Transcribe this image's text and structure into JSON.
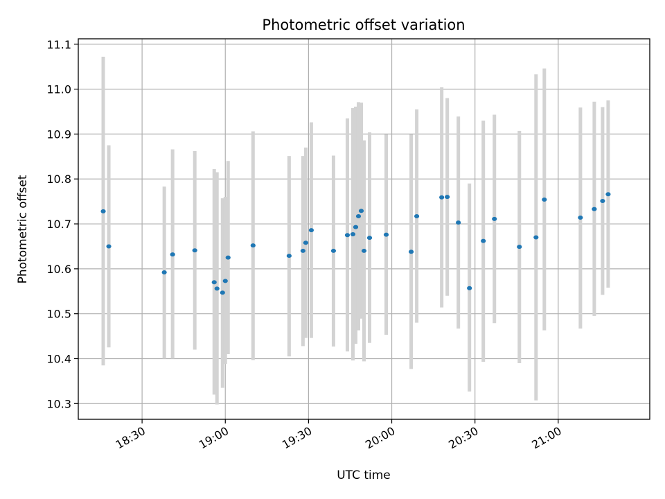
{
  "chart_data": {
    "type": "scatter",
    "title": "Photometric offset variation",
    "xlabel": "UTC time",
    "ylabel": "Photometric offset",
    "x_axis": {
      "type": "time",
      "range": [
        "18:07",
        "21:33"
      ],
      "ticks": [
        "18:30",
        "19:00",
        "19:30",
        "20:00",
        "20:30",
        "21:00"
      ]
    },
    "y_axis": {
      "range": [
        10.265,
        11.112
      ],
      "ticks": [
        "10.3",
        "10.4",
        "10.5",
        "10.6",
        "10.7",
        "10.8",
        "10.9",
        "11.0",
        "11.1"
      ]
    },
    "grid": true,
    "point_color": "#1f77b4",
    "errorbar_color": "#d3d3d3",
    "points": [
      {
        "time": "18:16",
        "y": 10.728,
        "low": 10.385,
        "high": 11.072
      },
      {
        "time": "18:18",
        "y": 10.65,
        "low": 10.425,
        "high": 10.875
      },
      {
        "time": "18:38",
        "y": 10.592,
        "low": 10.4,
        "high": 10.783
      },
      {
        "time": "18:41",
        "y": 10.632,
        "low": 10.4,
        "high": 10.866
      },
      {
        "time": "18:49",
        "y": 10.641,
        "low": 10.42,
        "high": 10.862
      },
      {
        "time": "18:56",
        "y": 10.57,
        "low": 10.32,
        "high": 10.822
      },
      {
        "time": "18:57",
        "y": 10.556,
        "low": 10.298,
        "high": 10.815
      },
      {
        "time": "18:59",
        "y": 10.547,
        "low": 10.335,
        "high": 10.757
      },
      {
        "time": "19:00",
        "y": 10.573,
        "low": 10.388,
        "high": 10.76
      },
      {
        "time": "19:01",
        "y": 10.625,
        "low": 10.41,
        "high": 10.84
      },
      {
        "time": "19:10",
        "y": 10.652,
        "low": 10.397,
        "high": 10.906
      },
      {
        "time": "19:23",
        "y": 10.629,
        "low": 10.405,
        "high": 10.851
      },
      {
        "time": "19:28",
        "y": 10.64,
        "low": 10.428,
        "high": 10.851
      },
      {
        "time": "19:29",
        "y": 10.658,
        "low": 10.446,
        "high": 10.87
      },
      {
        "time": "19:31",
        "y": 10.686,
        "low": 10.446,
        "high": 10.926
      },
      {
        "time": "19:39",
        "y": 10.64,
        "low": 10.427,
        "high": 10.852
      },
      {
        "time": "19:44",
        "y": 10.675,
        "low": 10.416,
        "high": 10.935
      },
      {
        "time": "19:46",
        "y": 10.677,
        "low": 10.396,
        "high": 10.958
      },
      {
        "time": "19:47",
        "y": 10.693,
        "low": 10.433,
        "high": 10.961
      },
      {
        "time": "19:48",
        "y": 10.717,
        "low": 10.463,
        "high": 10.971
      },
      {
        "time": "19:49",
        "y": 10.729,
        "low": 10.489,
        "high": 10.97
      },
      {
        "time": "19:50",
        "y": 10.64,
        "low": 10.394,
        "high": 10.886
      },
      {
        "time": "19:52",
        "y": 10.669,
        "low": 10.435,
        "high": 10.904
      },
      {
        "time": "19:58",
        "y": 10.676,
        "low": 10.453,
        "high": 10.899
      },
      {
        "time": "20:07",
        "y": 10.638,
        "low": 10.377,
        "high": 10.899
      },
      {
        "time": "20:09",
        "y": 10.717,
        "low": 10.48,
        "high": 10.955
      },
      {
        "time": "20:18",
        "y": 10.759,
        "low": 10.514,
        "high": 11.004
      },
      {
        "time": "20:20",
        "y": 10.76,
        "low": 10.54,
        "high": 10.98
      },
      {
        "time": "20:24",
        "y": 10.703,
        "low": 10.467,
        "high": 10.939
      },
      {
        "time": "20:28",
        "y": 10.557,
        "low": 10.327,
        "high": 10.79
      },
      {
        "time": "20:33",
        "y": 10.662,
        "low": 10.393,
        "high": 10.93
      },
      {
        "time": "20:37",
        "y": 10.711,
        "low": 10.479,
        "high": 10.943
      },
      {
        "time": "20:46",
        "y": 10.649,
        "low": 10.39,
        "high": 10.907
      },
      {
        "time": "20:52",
        "y": 10.67,
        "low": 10.307,
        "high": 11.033
      },
      {
        "time": "20:55",
        "y": 10.754,
        "low": 10.463,
        "high": 11.046
      },
      {
        "time": "21:08",
        "y": 10.714,
        "low": 10.467,
        "high": 10.959
      },
      {
        "time": "21:13",
        "y": 10.733,
        "low": 10.495,
        "high": 10.972
      },
      {
        "time": "21:16",
        "y": 10.751,
        "low": 10.542,
        "high": 10.96
      },
      {
        "time": "21:18",
        "y": 10.766,
        "low": 10.558,
        "high": 10.975
      }
    ]
  }
}
